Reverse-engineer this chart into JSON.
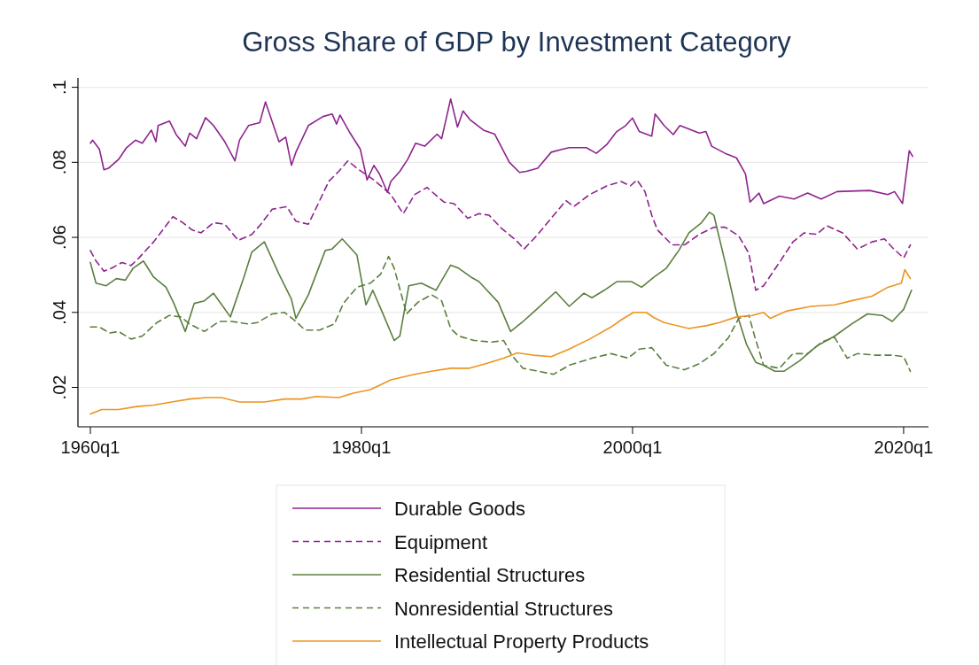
{
  "chart_data": {
    "type": "line",
    "title": "Gross Share of GDP by Investment Category",
    "xlim": [
      "1959-02",
      "2021-11"
    ],
    "ylim": [
      0.0095,
      0.1025
    ],
    "xticks": [
      {
        "value": "1960-01",
        "label": "1960q1"
      },
      {
        "value": "1980-01",
        "label": "1980q1"
      },
      {
        "value": "2000-01",
        "label": "2000q1"
      },
      {
        "value": "2020-01",
        "label": "2020q1"
      }
    ],
    "yticks": [
      {
        "value": 0.02,
        "label": ".02"
      },
      {
        "value": 0.04,
        "label": ".04"
      },
      {
        "value": 0.06,
        "label": ".06"
      },
      {
        "value": 0.08,
        "label": ".08"
      },
      {
        "value": 0.1,
        "label": ".1"
      }
    ],
    "grid": "y",
    "legend": "bottom",
    "marker": "none",
    "series": [
      {
        "name": "Durable Goods",
        "color": "#8e238e",
        "line_style": "solid",
        "x": [
          "1960-01",
          "1960-03",
          "1960-09",
          "1961-01",
          "1961-05",
          "1962-02",
          "1962-09",
          "1963-05",
          "1963-11",
          "1964-07",
          "1964-11",
          "1965-01",
          "1965-11",
          "1966-05",
          "1967-01",
          "1967-05",
          "1967-11",
          "1968-07",
          "1969-02",
          "1969-12",
          "1970-09",
          "1971-01",
          "1971-09",
          "1972-07",
          "1972-12",
          "1973-12",
          "1974-06",
          "1974-11",
          "1975-03",
          "1976-02",
          "1977-03",
          "1977-11",
          "1978-03",
          "1978-06",
          "1979-03",
          "1979-12",
          "1980-06",
          "1980-12",
          "1981-05",
          "1981-12",
          "1982-03",
          "1982-11",
          "1983-06",
          "1984-01",
          "1984-09",
          "1985-08",
          "1985-12",
          "1986-08",
          "1987-02",
          "1987-07",
          "1988-01",
          "1989-01",
          "1989-11",
          "1990-12",
          "1991-09",
          "1992-03",
          "1993-01",
          "1994-01",
          "1994-11",
          "1995-05",
          "1996-08",
          "1997-05",
          "1998-02",
          "1998-11",
          "1999-07",
          "2000-01",
          "2000-07",
          "2001-06",
          "2001-09",
          "2002-05",
          "2003-01",
          "2003-07",
          "2004-12",
          "2005-06",
          "2005-11",
          "2006-11",
          "2007-09",
          "2008-05",
          "2008-09",
          "2009-05",
          "2009-09",
          "2010-11",
          "2011-12",
          "2012-12",
          "2013-12",
          "2015-02",
          "2017-07",
          "2018-11",
          "2019-05",
          "2019-12",
          "2020-06",
          "2020-09"
        ],
        "values": [
          0.0851,
          0.0859,
          0.0835,
          0.078,
          0.0784,
          0.0808,
          0.0839,
          0.0859,
          0.0851,
          0.0886,
          0.0855,
          0.0898,
          0.091,
          0.0874,
          0.0843,
          0.0878,
          0.0863,
          0.0919,
          0.0898,
          0.0855,
          0.0804,
          0.0859,
          0.0898,
          0.0906,
          0.0961,
          0.0855,
          0.0867,
          0.0792,
          0.0827,
          0.0898,
          0.0922,
          0.0929,
          0.0902,
          0.0926,
          0.0878,
          0.0835,
          0.0753,
          0.0792,
          0.0769,
          0.072,
          0.0749,
          0.0776,
          0.0808,
          0.0851,
          0.0843,
          0.0875,
          0.0863,
          0.0969,
          0.0894,
          0.0937,
          0.0914,
          0.0886,
          0.0875,
          0.08,
          0.0773,
          0.0776,
          0.0784,
          0.0827,
          0.0835,
          0.0839,
          0.0839,
          0.0824,
          0.0847,
          0.0882,
          0.0898,
          0.0918,
          0.0882,
          0.087,
          0.0929,
          0.0898,
          0.0874,
          0.0898,
          0.0878,
          0.0882,
          0.0843,
          0.0824,
          0.0812,
          0.0769,
          0.0694,
          0.0718,
          0.069,
          0.071,
          0.0702,
          0.0718,
          0.0702,
          0.0722,
          0.0725,
          0.0714,
          0.0722,
          0.069,
          0.0831,
          0.0816
        ]
      },
      {
        "name": "Equipment",
        "color": "#8e238e",
        "line_style": "dashed",
        "x": [
          "1960-01",
          "1960-06",
          "1961-01",
          "1961-08",
          "1962-05",
          "1963-01",
          "1963-08",
          "1964-09",
          "1966-02",
          "1966-11",
          "1967-07",
          "1968-03",
          "1969-02",
          "1969-12",
          "1970-12",
          "1971-12",
          "1972-08",
          "1973-06",
          "1974-07",
          "1975-03",
          "1976-02",
          "1976-12",
          "1977-08",
          "1978-05",
          "1979-01",
          "1979-09",
          "1980-12",
          "1982-03",
          "1983-02",
          "1983-12",
          "1984-11",
          "1986-02",
          "1986-11",
          "1987-11",
          "1988-09",
          "1989-06",
          "1990-05",
          "1991-06",
          "1992-01",
          "1992-12",
          "1994-01",
          "1995-02",
          "1995-09",
          "1996-11",
          "1998-02",
          "1999-03",
          "1999-11",
          "2000-05",
          "2000-12",
          "2001-06",
          "2001-11",
          "2002-12",
          "2003-11",
          "2004-12",
          "2006-01",
          "2006-11",
          "2007-11",
          "2008-08",
          "2009-02",
          "2009-09",
          "2010-11",
          "2011-11",
          "2012-09",
          "2013-08",
          "2014-05",
          "2015-07",
          "2016-08",
          "2017-09",
          "2018-08",
          "2019-03",
          "2020-01",
          "2020-07"
        ],
        "values": [
          0.0565,
          0.0537,
          0.051,
          0.0518,
          0.0533,
          0.0525,
          0.0545,
          0.0588,
          0.0655,
          0.0639,
          0.062,
          0.0612,
          0.0639,
          0.0635,
          0.0592,
          0.0608,
          0.0635,
          0.0675,
          0.0682,
          0.0643,
          0.0635,
          0.0698,
          0.0749,
          0.0776,
          0.0804,
          0.0784,
          0.0753,
          0.0714,
          0.0663,
          0.0714,
          0.0733,
          0.0694,
          0.069,
          0.0651,
          0.0663,
          0.0659,
          0.0624,
          0.0592,
          0.0569,
          0.0604,
          0.0651,
          0.0698,
          0.0682,
          0.0714,
          0.0737,
          0.0749,
          0.0737,
          0.0753,
          0.0722,
          0.0659,
          0.062,
          0.058,
          0.058,
          0.0608,
          0.0627,
          0.0627,
          0.0604,
          0.0557,
          0.0459,
          0.0471,
          0.0533,
          0.0588,
          0.0612,
          0.0608,
          0.0631,
          0.0612,
          0.0569,
          0.0588,
          0.0596,
          0.0573,
          0.0545,
          0.058
        ]
      },
      {
        "name": "Residential Structures",
        "color": "#5b7f3e",
        "line_style": "solid",
        "x": [
          "1960-01",
          "1960-06",
          "1961-03",
          "1961-12",
          "1962-08",
          "1963-03",
          "1963-12",
          "1964-09",
          "1965-08",
          "1966-03",
          "1967-01",
          "1967-09",
          "1968-06",
          "1969-02",
          "1970-05",
          "1971-05",
          "1971-12",
          "1972-11",
          "1973-12",
          "1974-11",
          "1975-03",
          "1976-02",
          "1977-05",
          "1977-11",
          "1978-08",
          "1979-09",
          "1980-05",
          "1980-11",
          "1981-07",
          "1982-06",
          "1982-11",
          "1983-07",
          "1984-06",
          "1985-07",
          "1986-08",
          "1987-03",
          "1988-02",
          "1988-09",
          "1990-02",
          "1991-01",
          "1991-11",
          "1992-12",
          "1994-05",
          "1995-05",
          "1996-06",
          "1997-01",
          "1997-12",
          "1998-11",
          "1999-12",
          "2000-09",
          "2001-08",
          "2002-07",
          "2003-06",
          "2004-03",
          "2005-02",
          "2005-09",
          "2006-01",
          "2006-11",
          "2007-09",
          "2008-06",
          "2009-02",
          "2009-09",
          "2010-07",
          "2011-03",
          "2012-05",
          "2013-08",
          "2014-12",
          "2016-03",
          "2017-05",
          "2018-06",
          "2019-03",
          "2020-01",
          "2020-08"
        ],
        "values": [
          0.0533,
          0.0478,
          0.0471,
          0.049,
          0.0486,
          0.0518,
          0.0537,
          0.0494,
          0.0467,
          0.0424,
          0.0349,
          0.0424,
          0.0431,
          0.0451,
          0.0388,
          0.0494,
          0.0561,
          0.0588,
          0.0502,
          0.0435,
          0.0384,
          0.0447,
          0.0565,
          0.0569,
          0.0596,
          0.0553,
          0.042,
          0.0459,
          0.0404,
          0.0325,
          0.0337,
          0.0471,
          0.0478,
          0.0459,
          0.0526,
          0.0518,
          0.0494,
          0.0482,
          0.0427,
          0.0349,
          0.0373,
          0.0408,
          0.0455,
          0.0416,
          0.0451,
          0.0439,
          0.0459,
          0.0482,
          0.0482,
          0.0467,
          0.0494,
          0.0518,
          0.0565,
          0.0612,
          0.0639,
          0.0667,
          0.0659,
          0.0533,
          0.04,
          0.0314,
          0.0267,
          0.0259,
          0.0243,
          0.0243,
          0.0271,
          0.031,
          0.0337,
          0.0369,
          0.0396,
          0.0392,
          0.0376,
          0.0408,
          0.0459
        ]
      },
      {
        "name": "Nonresidential Structures",
        "color": "#5b7f3e",
        "line_style": "dashed",
        "x": [
          "1960-01",
          "1960-09",
          "1961-06",
          "1962-02",
          "1963-01",
          "1963-11",
          "1964-12",
          "1965-11",
          "1966-09",
          "1967-05",
          "1968-06",
          "1969-07",
          "1970-06",
          "1971-09",
          "1972-05",
          "1973-06",
          "1974-05",
          "1975-03",
          "1975-11",
          "1976-12",
          "1978-01",
          "1978-09",
          "1979-09",
          "1980-09",
          "1981-06",
          "1982-01",
          "1982-06",
          "1983-05",
          "1984-03",
          "1985-03",
          "1985-12",
          "1986-08",
          "1987-03",
          "1988-05",
          "1989-08",
          "1990-07",
          "1991-02",
          "1991-12",
          "1993-02",
          "1994-03",
          "1995-05",
          "1997-01",
          "1998-06",
          "1999-09",
          "2000-07",
          "2001-06",
          "2002-07",
          "2003-11",
          "2004-12",
          "2006-01",
          "2007-02",
          "2007-11",
          "2008-08",
          "2009-01",
          "2009-09",
          "2010-11",
          "2011-11",
          "2012-12",
          "2014-01",
          "2014-12",
          "2015-11",
          "2016-08",
          "2017-12",
          "2019-03",
          "2020-01",
          "2020-07"
        ],
        "values": [
          0.0361,
          0.0361,
          0.0345,
          0.0349,
          0.0329,
          0.0337,
          0.0373,
          0.0392,
          0.0388,
          0.0369,
          0.0349,
          0.0376,
          0.0376,
          0.0369,
          0.0373,
          0.0396,
          0.04,
          0.0376,
          0.0353,
          0.0353,
          0.0369,
          0.0424,
          0.0467,
          0.0478,
          0.0502,
          0.0549,
          0.0518,
          0.0396,
          0.0427,
          0.0447,
          0.0431,
          0.0357,
          0.0337,
          0.0325,
          0.0321,
          0.0325,
          0.0286,
          0.0251,
          0.0243,
          0.0235,
          0.0259,
          0.0278,
          0.029,
          0.0278,
          0.0302,
          0.0306,
          0.0259,
          0.0247,
          0.0263,
          0.029,
          0.0333,
          0.0384,
          0.0392,
          0.0337,
          0.0259,
          0.0251,
          0.029,
          0.029,
          0.0322,
          0.0333,
          0.0278,
          0.029,
          0.0286,
          0.0286,
          0.0282,
          0.0243
        ]
      },
      {
        "name": "Intellectual Property Products",
        "color": "#ec941f",
        "line_style": "solid",
        "x": [
          "1960-01",
          "1960-11",
          "1962-02",
          "1963-06",
          "1964-09",
          "1966-01",
          "1967-05",
          "1968-08",
          "1969-09",
          "1971-01",
          "1972-11",
          "1974-05",
          "1975-08",
          "1976-09",
          "1978-05",
          "1979-05",
          "1980-09",
          "1982-03",
          "1983-12",
          "1985-03",
          "1986-08",
          "1987-12",
          "1989-03",
          "1990-07",
          "1991-07",
          "1992-09",
          "1994-01",
          "1995-05",
          "1996-11",
          "1998-06",
          "1999-03",
          "2000-02",
          "2001-01",
          "2001-08",
          "2002-05",
          "2004-03",
          "2005-07",
          "2006-06",
          "2007-09",
          "2008-11",
          "2009-09",
          "2010-03",
          "2011-06",
          "2013-03",
          "2014-12",
          "2016-03",
          "2017-09",
          "2018-11",
          "2019-11",
          "2020-02",
          "2020-07"
        ],
        "values": [
          0.0129,
          0.0141,
          0.0141,
          0.0149,
          0.0153,
          0.0161,
          0.0169,
          0.0173,
          0.0173,
          0.0161,
          0.0161,
          0.0169,
          0.0169,
          0.0176,
          0.0173,
          0.0184,
          0.0194,
          0.022,
          0.0235,
          0.0243,
          0.0251,
          0.0251,
          0.0263,
          0.0278,
          0.0292,
          0.0286,
          0.0282,
          0.0302,
          0.0329,
          0.0361,
          0.038,
          0.04,
          0.04,
          0.0386,
          0.0373,
          0.0357,
          0.0365,
          0.0373,
          0.0388,
          0.0392,
          0.04,
          0.0384,
          0.0404,
          0.0416,
          0.042,
          0.0431,
          0.0443,
          0.0467,
          0.0478,
          0.0514,
          0.049
        ]
      }
    ]
  }
}
